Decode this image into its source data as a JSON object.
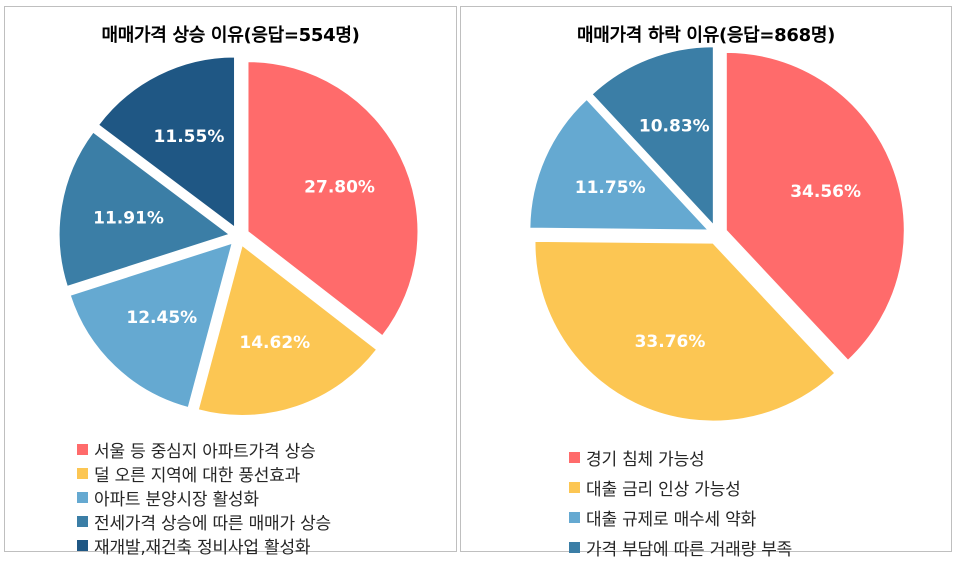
{
  "chart_data": [
    {
      "type": "pie",
      "title": "매매가격 상승 이유(응답=554명)",
      "categories": [
        "서울 등 중심지 아파트가격 상승",
        "덜 오른 지역에 대한 풍선효과",
        "아파트 분양시장 활성화",
        "전세가격 상승에 따른 매매가 상승",
        "재개발,재건축 정비사업 활성화"
      ],
      "values": [
        27.8,
        14.62,
        12.45,
        11.91,
        11.55
      ],
      "value_labels": [
        "27.80%",
        "14.62%",
        "12.45%",
        "11.91%",
        "11.55%"
      ],
      "colors": [
        "#ff6b6b",
        "#fcc653",
        "#65a9d1",
        "#3b7ea6",
        "#1f5784"
      ],
      "legend_position": "bottom"
    },
    {
      "type": "pie",
      "title": "매매가격 하락 이유(응답=868명)",
      "categories": [
        "경기 침체 가능성",
        "대출 금리 인상 가능성",
        "대출 규제로 매수세 약화",
        "가격 부담에 따른 거래량 부족"
      ],
      "values": [
        34.56,
        33.76,
        11.75,
        10.83
      ],
      "value_labels": [
        "34.56%",
        "33.76%",
        "11.75%",
        "10.83%"
      ],
      "colors": [
        "#ff6b6b",
        "#fcc653",
        "#65a9d1",
        "#3b7ea6"
      ],
      "legend_position": "bottom"
    }
  ]
}
